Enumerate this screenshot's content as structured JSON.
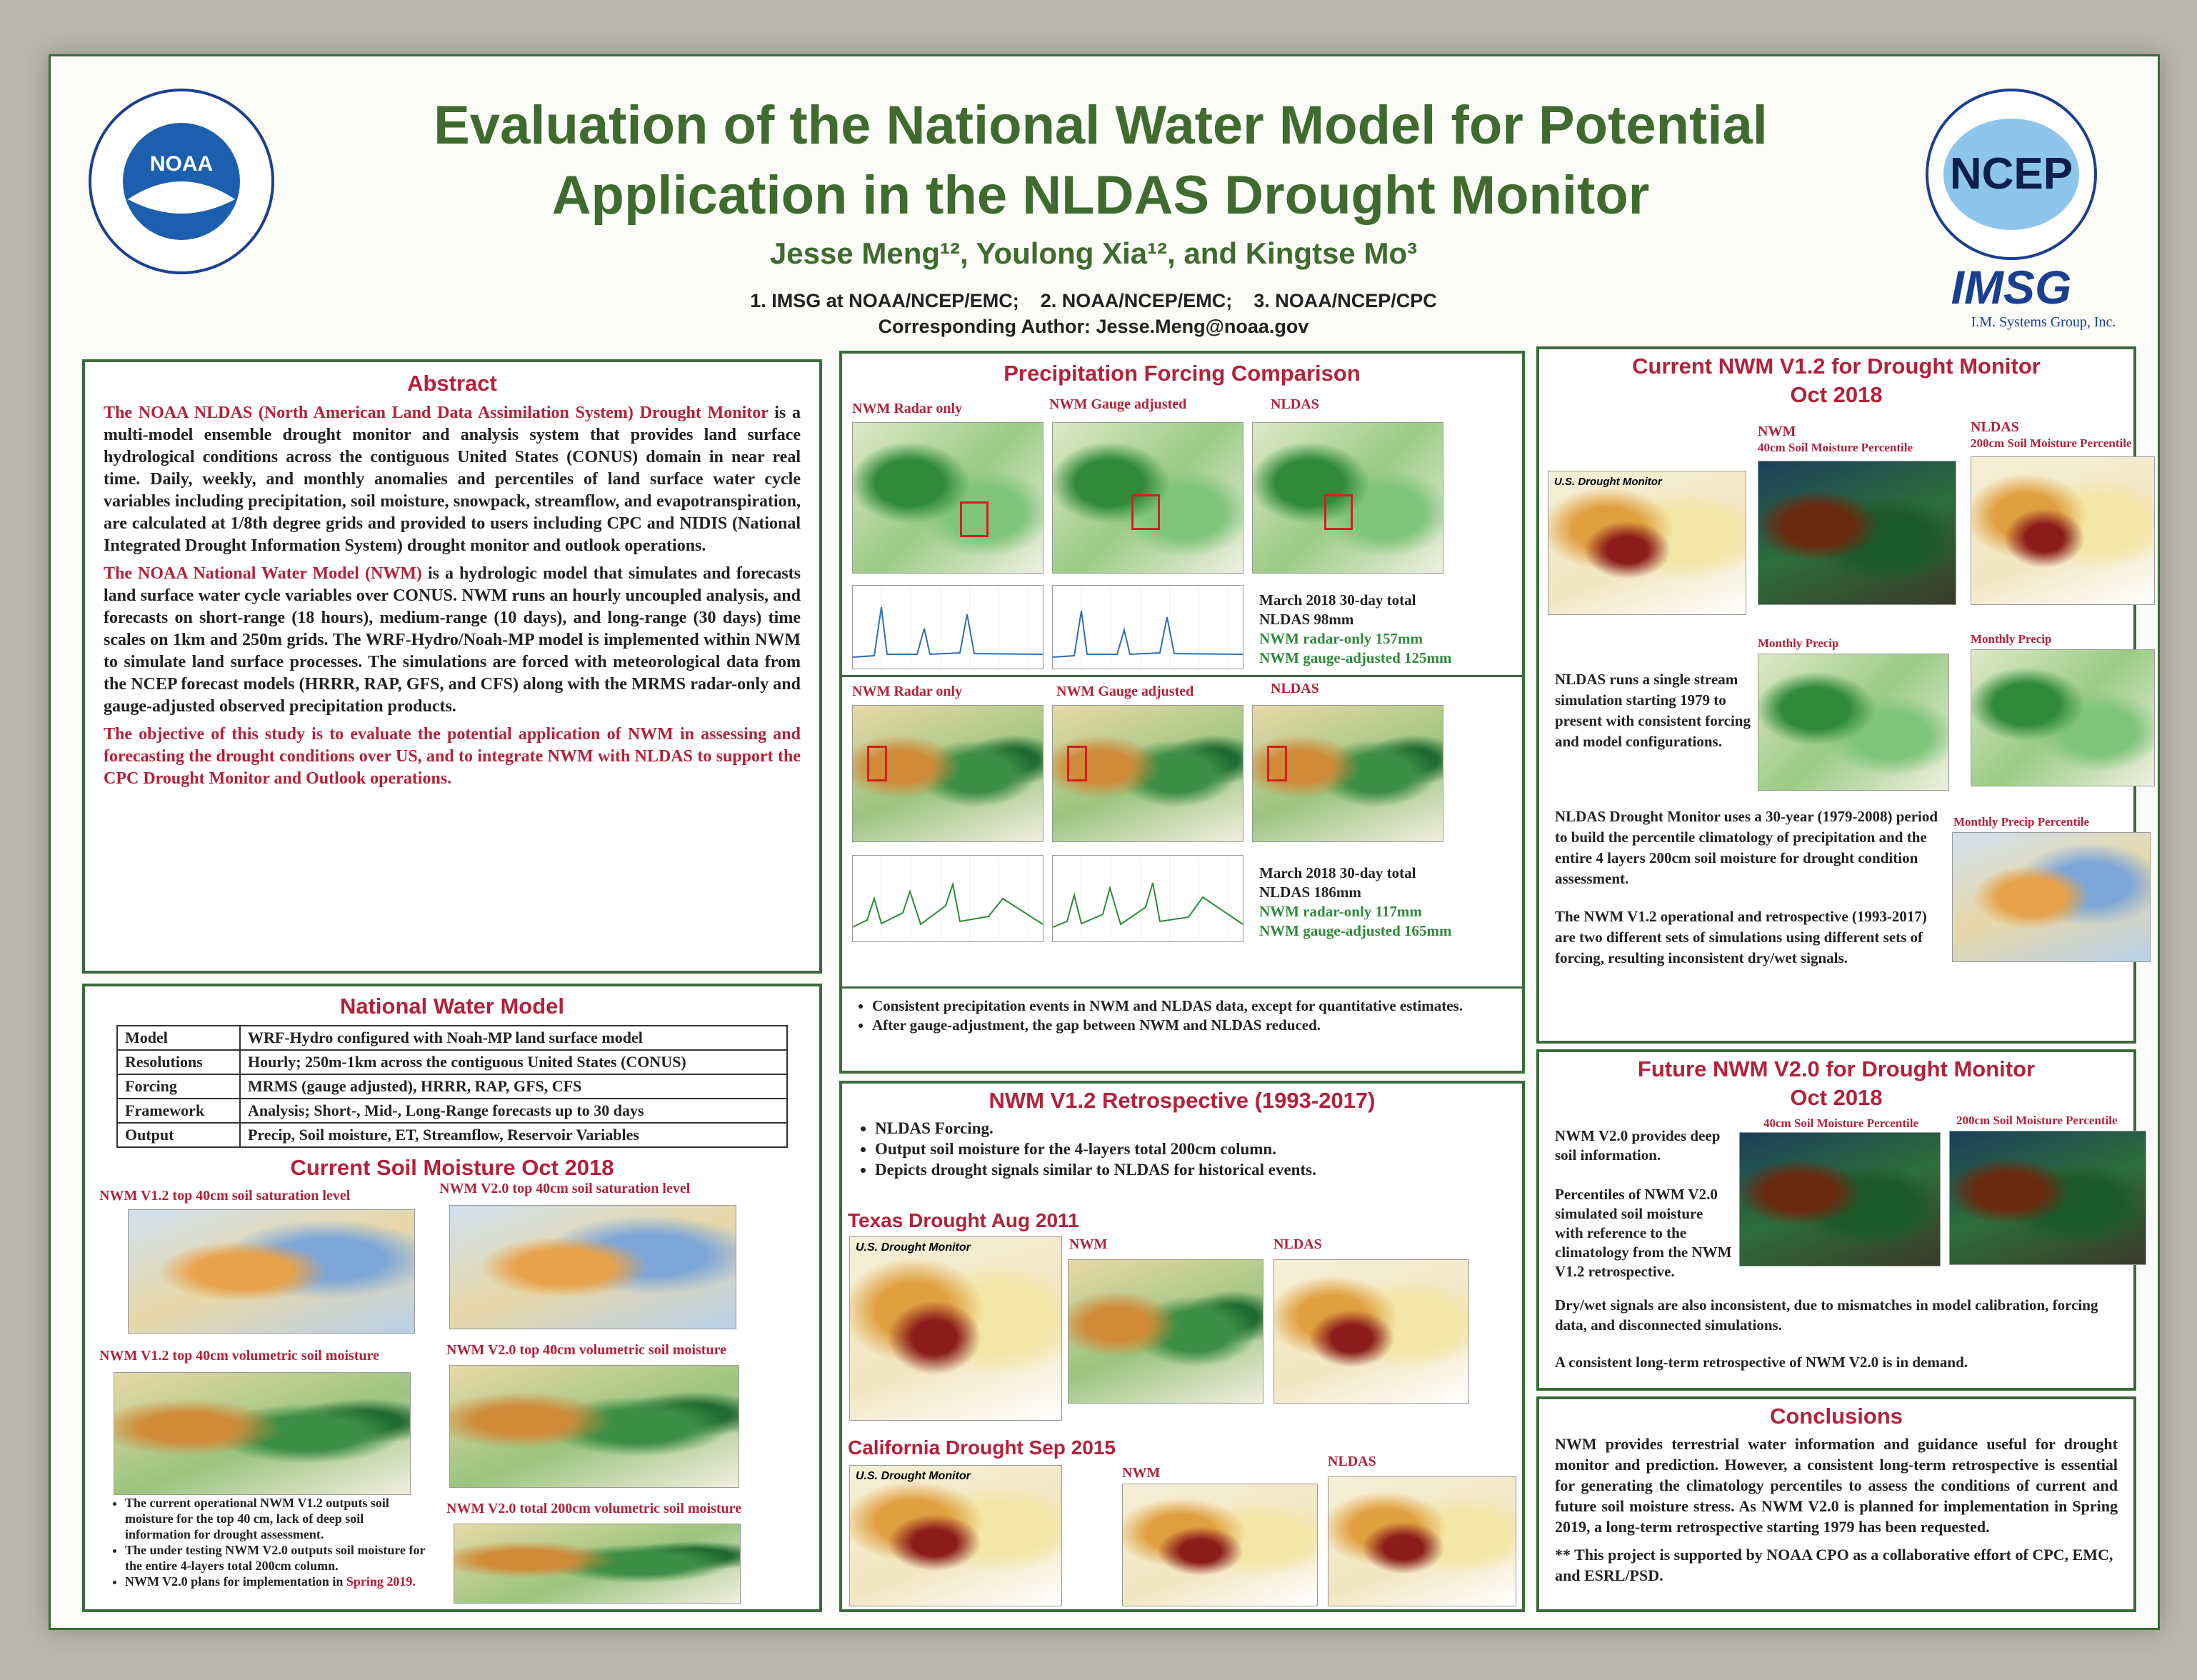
{
  "header": {
    "title_line1": "Evaluation of the National Water Model for Potential",
    "title_line2": "Application in the NLDAS Drought Monitor",
    "authors": "Jesse Meng¹², Youlong Xia¹², and Kingtse Mo³",
    "affiliations": "1. IMSG at NOAA/NCEP/EMC;    2. NOAA/NCEP/EMC;    3. NOAA/NCEP/CPC",
    "corresponding": "Corresponding Author: Jesse.Meng@noaa.gov",
    "noaa_logo_text": "NOAA",
    "ncep_logo_text": "NCEP",
    "imsg_logo_text": "IMSG",
    "imsg_logo_sub": "I.M. Systems Group, Inc."
  },
  "abstract": {
    "title": "Abstract",
    "p1_red": "The NOAA NLDAS (North American Land Data Assimilation System) Drought Monitor",
    "p1_rest": " is a multi-model ensemble drought monitor and analysis system that provides land surface hydrological conditions across the contiguous United States (CONUS) domain in near real time. Daily, weekly, and monthly anomalies and percentiles of land surface water cycle variables including precipitation, soil moisture, snowpack, streamflow, and evapotranspiration, are calculated at 1/8th degree grids and provided to users including CPC and NIDIS (National Integrated Drought Information System) drought monitor and outlook operations.",
    "p2_red": "The NOAA National Water Model (NWM)",
    "p2_rest": " is a hydrologic model that simulates and forecasts land surface water cycle variables over CONUS. NWM runs an hourly uncoupled analysis, and forecasts on short-range (18 hours), medium-range (10 days), and long-range (30 days) time scales on 1km and 250m grids. The WRF-Hydro/Noah-MP model is implemented within NWM to simulate land surface processes. The simulations are forced with meteorological data from the NCEP forecast models (HRRR, RAP, GFS, and CFS) along with the MRMS radar-only and gauge-adjusted observed precipitation products.",
    "p3": "The objective of this study is to evaluate the potential application of NWM in assessing and forecasting the drought conditions over US, and to integrate NWM with NLDAS to support the CPC Drought Monitor and Outlook operations."
  },
  "nwm": {
    "title": "National Water Model",
    "rows": [
      [
        "Model",
        "WRF-Hydro configured with Noah-MP land surface model"
      ],
      [
        "Resolutions",
        "Hourly; 250m-1km across the contiguous United States (CONUS)"
      ],
      [
        "Forcing",
        "MRMS (gauge adjusted), HRRR, RAP, GFS, CFS"
      ],
      [
        "Framework",
        "Analysis; Short-, Mid-, Long-Range forecasts up to 30 days"
      ],
      [
        "Output",
        "Precip, Soil moisture, ET, Streamflow, Reservoir Variables"
      ]
    ],
    "soil_title": "Current Soil Moisture Oct 2018",
    "lbl_v12_sat": "NWM V1.2 top 40cm soil saturation level",
    "lbl_v20_sat": "NWM V2.0 top 40cm soil saturation level",
    "lbl_v12_vol": "NWM V1.2 top 40cm volumetric soil moisture",
    "lbl_v20_vol": "NWM V2.0 top 40cm volumetric soil moisture",
    "lbl_v20_total": "NWM V2.0 total 200cm volumetric soil moisture",
    "bullet1": "The current operational NWM V1.2 outputs soil moisture for the top 40 cm, lack of deep soil information for drought assessment.",
    "bullet2": "The under testing NWM V2.0 outputs soil moisture for the entire 4-layers total 200cm column.",
    "bullet3": "NWM V2.0 plans for implementation in",
    "bullet3_red": "Spring 2019."
  },
  "precip": {
    "title": "Precipitation Forcing Comparison",
    "lbl_radar": "NWM Radar only",
    "lbl_gauge": "NWM Gauge adjusted",
    "lbl_nldas": "NLDAS",
    "east_stats": [
      "March 2018  30-day total",
      "NLDAS 98mm",
      "NWM radar-only 157mm",
      "NWM gauge-adjusted 125mm"
    ],
    "west_stats": [
      "March 2018  30-day total",
      "NLDAS 186mm",
      "NWM radar-only 117mm",
      "NWM gauge-adjusted 165mm"
    ],
    "bullet1": "Consistent precipitation events in NWM and NLDAS data, except for quantitative estimates.",
    "bullet2": "After gauge-adjustment, the gap between NWM and NLDAS reduced."
  },
  "retro": {
    "title": "NWM V1.2 Retrospective (1993-2017)",
    "bullets": [
      "NLDAS Forcing.",
      "Output soil moisture for the 4-layers total 200cm column.",
      "Depicts drought signals similar to NLDAS for historical events."
    ],
    "texas_title": "Texas Drought Aug 2011",
    "california_title": "California Drought Sep 2015",
    "usdm_label": "U.S. Drought Monitor",
    "lbl_nwm": "NWM",
    "lbl_nldas": "NLDAS"
  },
  "current": {
    "title_line1": "Current NWM V1.2 for Drought Monitor",
    "title_line2": "Oct 2018",
    "usdm_label": "U.S. Drought Monitor",
    "lbl_nwm": "NWM",
    "lbl_nwm_sub": "40cm Soil Moisture Percentile",
    "lbl_nldas": "NLDAS",
    "lbl_nldas_sub": "200cm Soil Moisture Percentile",
    "lbl_monthly": "Monthly Precip",
    "lbl_monthly_pct": "Monthly Precip Percentile",
    "text1": "NLDAS runs a single stream simulation starting 1979 to present with consistent forcing and model configurations.",
    "text2": "NLDAS Drought Monitor uses a 30-year (1979-2008) period to build the percentile climatology of precipitation and the entire 4 layers 200cm soil moisture for drought condition assessment.",
    "text3": "The NWM V1.2 operational and retrospective (1993-2017) are two different sets of simulations using different sets of forcing, resulting inconsistent dry/wet signals."
  },
  "future": {
    "title_line1": "Future NWM V2.0 for Drought Monitor",
    "title_line2": "Oct 2018",
    "lbl_40": "40cm Soil Moisture Percentile",
    "lbl_200": "200cm Soil Moisture Percentile",
    "text1": "NWM V2.0 provides deep soil information.",
    "text2": "Percentiles of NWM V2.0 simulated soil moisture with reference to the climatology from the NWM V1.2 retrospective.",
    "text3": "Dry/wet signals are also inconsistent, due to mismatches in model calibration, forcing data, and disconnected simulations.",
    "text4": "A consistent long-term retrospective of NWM V2.0 is in demand."
  },
  "conclusions": {
    "title": "Conclusions",
    "text": "NWM provides terrestrial water information and guidance useful for drought monitor and prediction. However, a consistent long-term retrospective is essential for generating the climatology percentiles to assess the conditions of current and future soil moisture stress. As NWM V2.0 is planned for implementation in Spring 2019, a long-term retrospective starting 1979 has been requested.",
    "note": "** This project is supported by NOAA CPO as a collaborative effort of CPC, EMC, and ESRL/PSD."
  }
}
